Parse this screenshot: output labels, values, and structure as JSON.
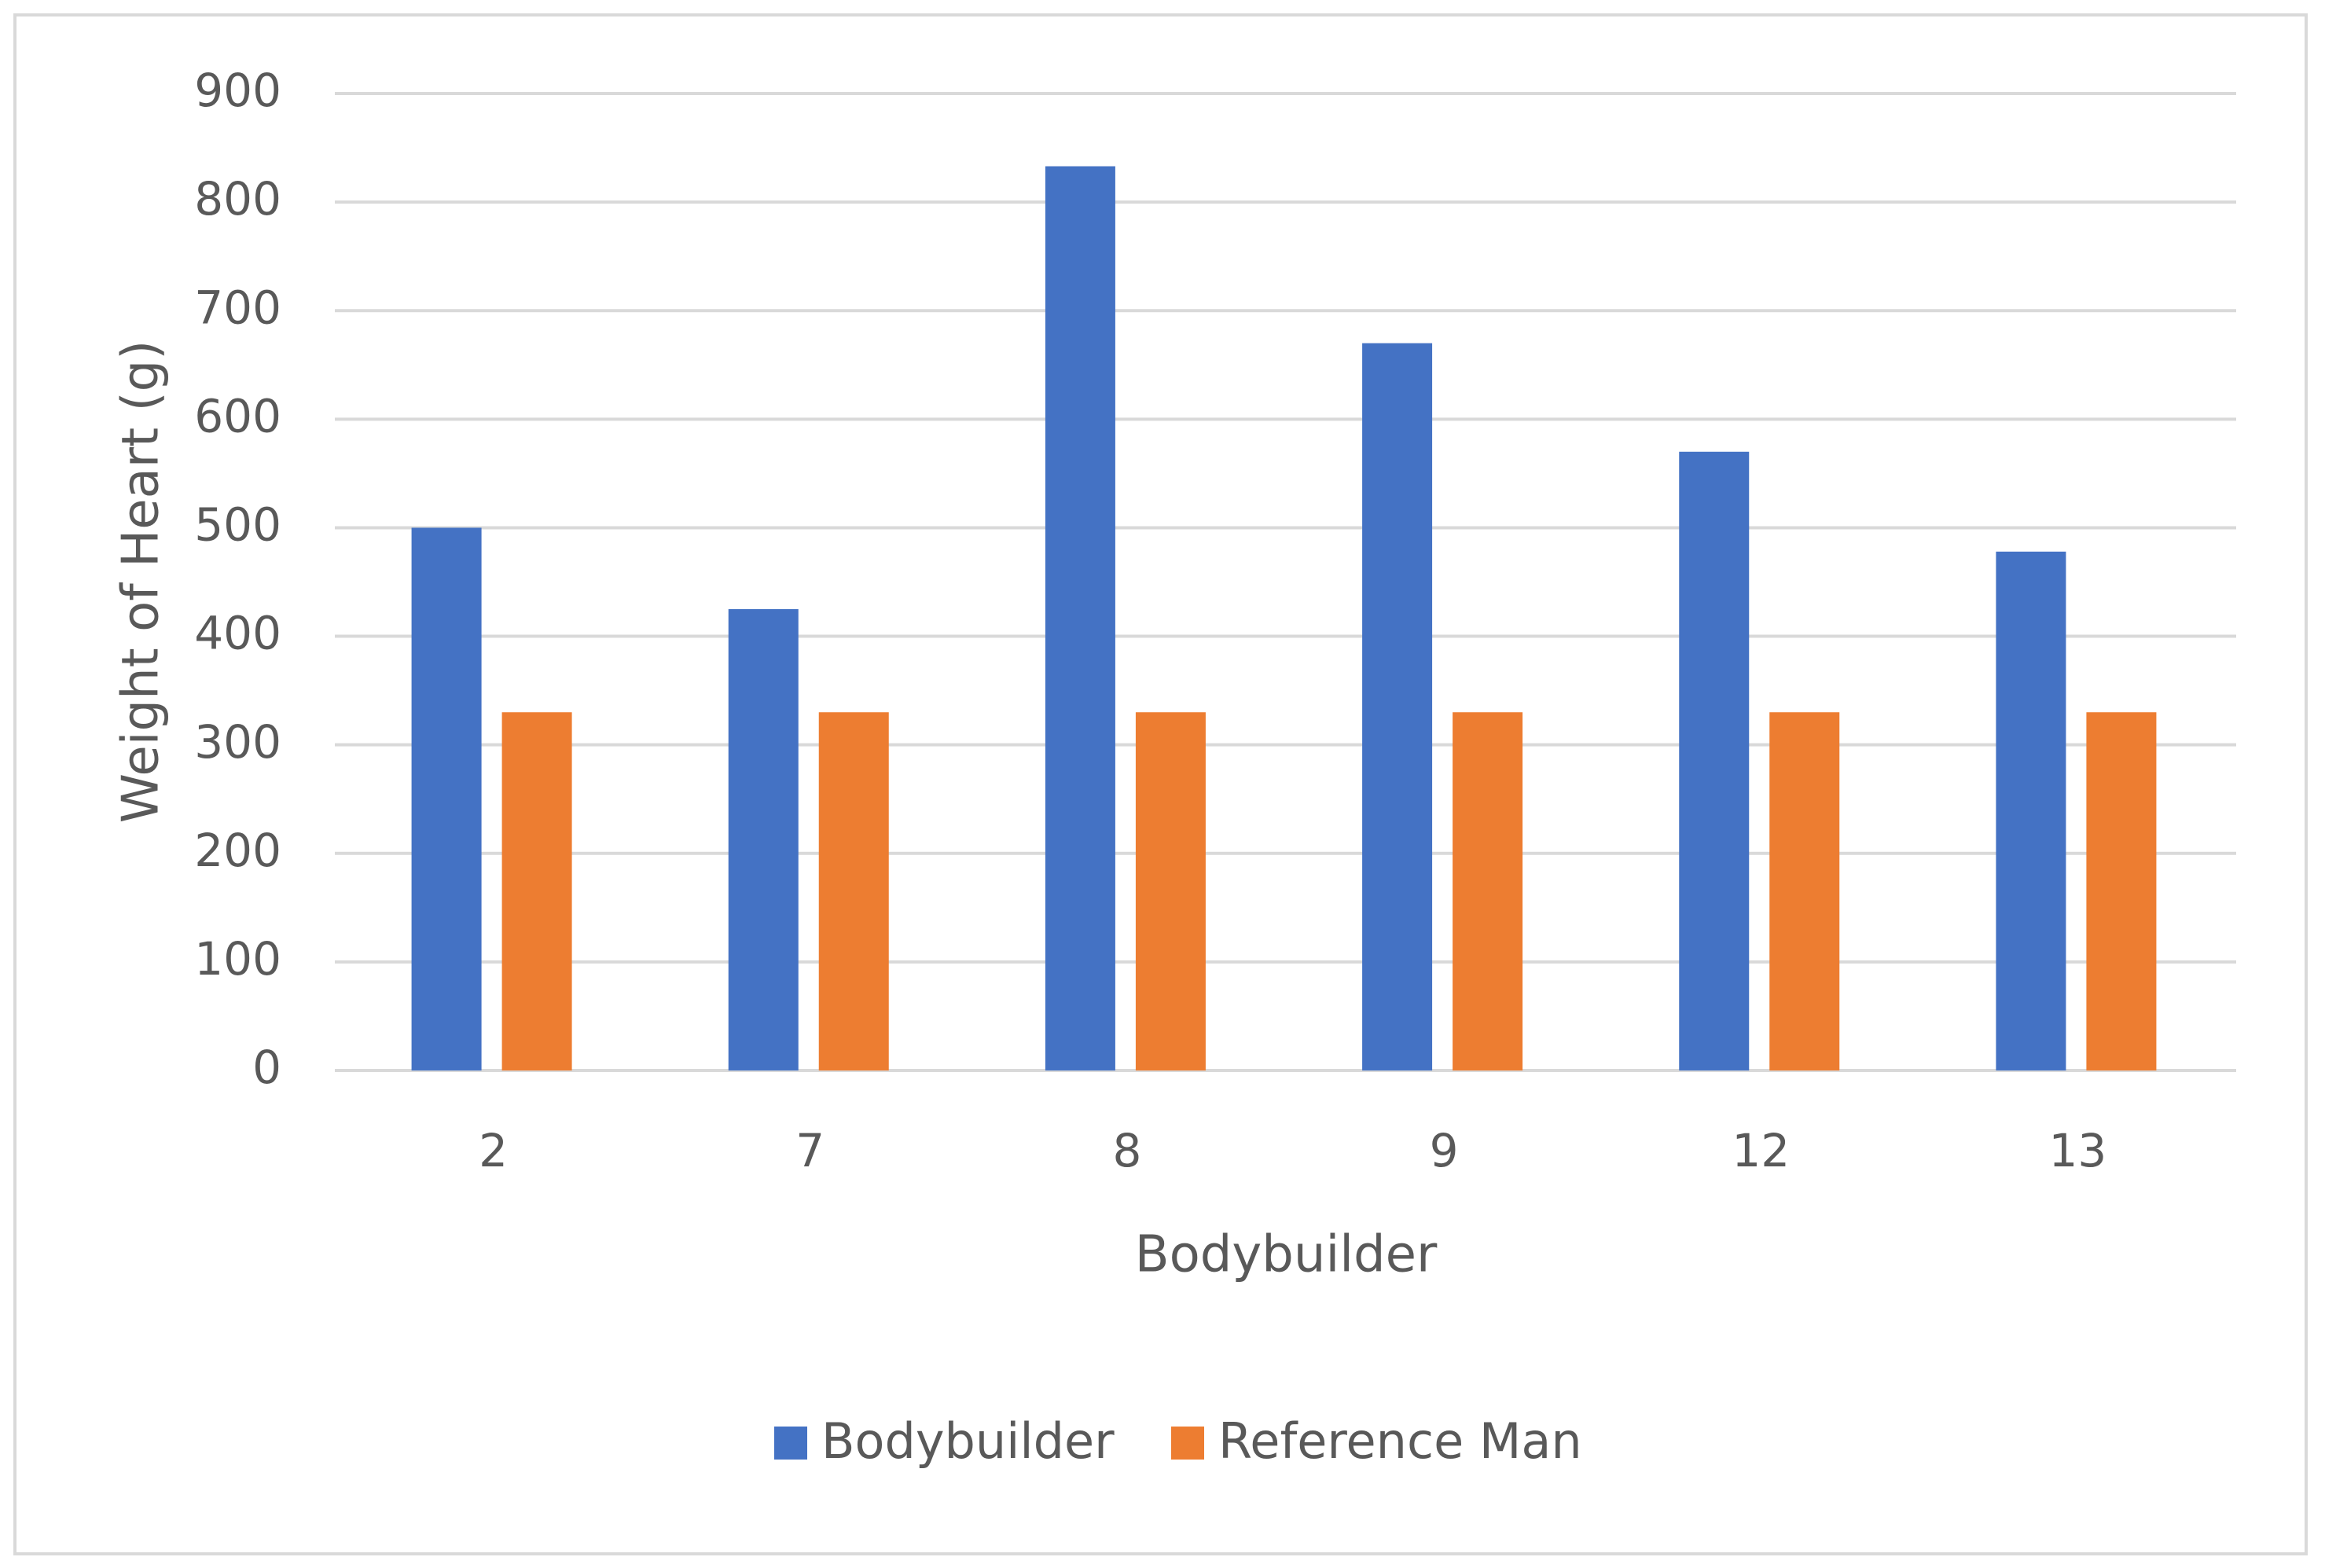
{
  "chart_data": {
    "type": "bar",
    "x_label": "Bodybuilder",
    "y_label": "Weight of Heart (g)",
    "categories": [
      "2",
      "7",
      "8",
      "9",
      "12",
      "13"
    ],
    "series": [
      {
        "name": "Bodybuilder",
        "color": "#4472c4",
        "values": [
          500,
          425,
          833,
          670,
          570,
          478
        ]
      },
      {
        "name": "Reference Man",
        "color": "#ed7d31",
        "values": [
          330,
          330,
          330,
          330,
          330,
          330
        ]
      }
    ],
    "ylim": [
      0,
      900
    ],
    "yticks": [
      0,
      100,
      200,
      300,
      400,
      500,
      600,
      700,
      800,
      900
    ],
    "grid": true,
    "legend": "bottom"
  }
}
